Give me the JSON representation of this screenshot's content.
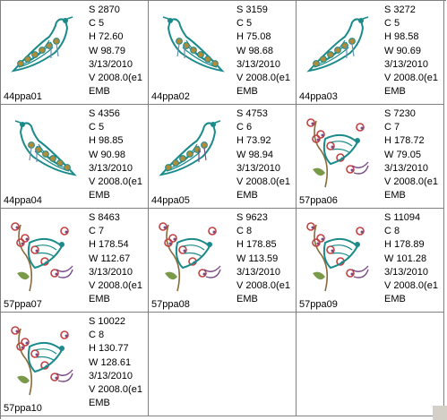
{
  "items": [
    {
      "name": "44ppa01",
      "s": "S   2870",
      "c": "C   5",
      "h": "H   72.60",
      "w": "W  98.79",
      "date": "3/13/2010",
      "v": "V   2008.0(e1",
      "fmt": "EMB",
      "icon": "peacock-embroidery-icon",
      "palette": [
        "#1a8a8a",
        "#b08c3a",
        "#6a8fb0"
      ]
    },
    {
      "name": "44ppa02",
      "s": "S   3159",
      "c": "C   5",
      "h": "H   75.08",
      "w": "W  98.68",
      "date": "3/13/2010",
      "v": "V   2008.0(e1",
      "fmt": "EMB",
      "icon": "peacock-embroidery-icon",
      "palette": [
        "#1a8a8a",
        "#b08c3a",
        "#6a8fb0"
      ]
    },
    {
      "name": "44ppa03",
      "s": "S   3272",
      "c": "C   5",
      "h": "H   98.58",
      "w": "W  90.69",
      "date": "3/13/2010",
      "v": "V   2008.0(e1",
      "fmt": "EMB",
      "icon": "peacock-embroidery-icon",
      "palette": [
        "#1a8a8a",
        "#b08c3a",
        "#6a8fb0"
      ]
    },
    {
      "name": "44ppa04",
      "s": "S   4356",
      "c": "C   5",
      "h": "H   98.85",
      "w": "W  90.98",
      "date": "3/13/2010",
      "v": "V   2008.0(e1",
      "fmt": "EMB",
      "icon": "peacock-embroidery-icon",
      "palette": [
        "#1a8a8a",
        "#b08c3a",
        "#6a8fb0"
      ]
    },
    {
      "name": "44ppa05",
      "s": "S   4753",
      "c": "C   6",
      "h": "H   73.92",
      "w": "W  98.94",
      "date": "3/13/2010",
      "v": "V   2008.0(e1",
      "fmt": "EMB",
      "icon": "peacock-embroidery-icon",
      "palette": [
        "#1a8a8a",
        "#b08c3a",
        "#7a4a8a"
      ]
    },
    {
      "name": "57ppa06",
      "s": "S   7230",
      "c": "C   7",
      "h": "H   178.72",
      "w": "W  79.05",
      "date": "3/13/2010",
      "v": "V   2008.0(e1",
      "fmt": "EMB",
      "icon": "peacock-floral-embroidery-icon",
      "palette": [
        "#1a8a8a",
        "#c04040",
        "#7a4a8a"
      ]
    },
    {
      "name": "57ppa07",
      "s": "S   8463",
      "c": "C   7",
      "h": "H   178.54",
      "w": "W  112.67",
      "date": "3/13/2010",
      "v": "V   2008.0(e1",
      "fmt": "EMB",
      "icon": "peacock-floral-embroidery-icon",
      "palette": [
        "#1a8a8a",
        "#c04040",
        "#7a4a8a"
      ]
    },
    {
      "name": "57ppa08",
      "s": "S   9623",
      "c": "C   8",
      "h": "H   178.85",
      "w": "W  113.59",
      "date": "3/13/2010",
      "v": "V   2008.0(e1",
      "fmt": "EMB",
      "icon": "peacock-floral-embroidery-icon",
      "palette": [
        "#1a8a8a",
        "#c04040",
        "#7a4a8a"
      ]
    },
    {
      "name": "57ppa09",
      "s": "S   11094",
      "c": "C   8",
      "h": "H   178.89",
      "w": "W  101.28",
      "date": "3/13/2010",
      "v": "V   2008.0(e1",
      "fmt": "EMB",
      "icon": "peacock-floral-embroidery-icon",
      "palette": [
        "#1a8a8a",
        "#c04040",
        "#7a4a8a"
      ]
    },
    {
      "name": "57ppa10",
      "s": "S   10022",
      "c": "C   8",
      "h": "H   130.77",
      "w": "W  128.61",
      "date": "3/13/2010",
      "v": "V   2008.0(e1",
      "fmt": "EMB",
      "icon": "peacock-floral-embroidery-icon",
      "palette": [
        "#1a8a8a",
        "#c04040",
        "#7a4a8a"
      ]
    }
  ]
}
